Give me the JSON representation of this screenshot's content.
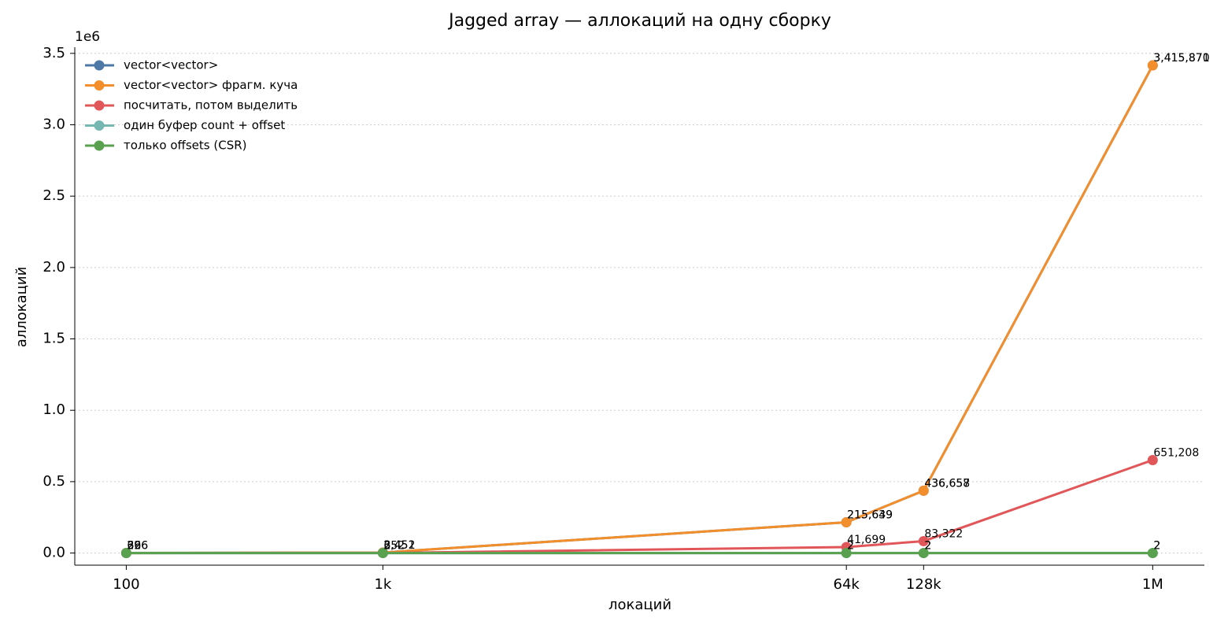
{
  "chart_data": {
    "type": "line",
    "title": "Jagged array — аллокаций на одну сборку",
    "x_label": "локаций",
    "y_label": "аллокаций",
    "y_offset_text": "1e6",
    "x": [
      100,
      1000,
      64000,
      128000,
      1000000
    ],
    "x_log": true,
    "xlim": [
      63,
      1590000
    ],
    "xticks": [
      100,
      {
        "value": 1000,
        "label": "1k"
      },
      {
        "value": 64000,
        "label": "64k"
      },
      {
        "value": 128000,
        "label": "128k"
      },
      {
        "value": 1000000,
        "label": "1M"
      }
    ],
    "ylim": [
      -85000,
      3543000
    ],
    "yticks": [
      {
        "value": 0,
        "label": "0.0"
      },
      {
        "value": 500000,
        "label": "0.5"
      },
      {
        "value": 1000000,
        "label": "1.0"
      },
      {
        "value": 1500000,
        "label": "1.5"
      },
      {
        "value": 2000000,
        "label": "2.0"
      },
      {
        "value": 2500000,
        "label": "2.5"
      },
      {
        "value": 3000000,
        "label": "3.0"
      },
      {
        "value": 3500000,
        "label": "3.5"
      }
    ],
    "grid": true,
    "legend": "upper left",
    "series": [
      {
        "name": "vector<vector>",
        "color": "#4e79a7",
        "values": [
          326,
          3451,
          215639,
          436657,
          3415870
        ],
        "value_labels": [
          "326",
          "3,451",
          "215,639",
          "436,657",
          "3,415,870"
        ]
      },
      {
        "name": "vector<vector> фрагм. куча",
        "color": "#f28e2b",
        "values": [
          396,
          3452,
          215649,
          436658,
          3415871
        ],
        "value_labels": [
          "396",
          "3,452",
          "215,649",
          "436,658",
          "3,415,871"
        ]
      },
      {
        "name": "посчитать, потом выделить",
        "color": "#e15759",
        "values": [
          66,
          652,
          41699,
          83322,
          651208
        ],
        "value_labels": [
          "66",
          "652",
          "41,699",
          "83,322",
          "651,208"
        ]
      },
      {
        "name": "один буфер count + offset",
        "color": "#76b7b2",
        "values": [
          2,
          2,
          2,
          2,
          2
        ],
        "value_labels": [
          "2",
          "2",
          "2",
          "2",
          "2"
        ]
      },
      {
        "name": "только offsets (CSR)",
        "color": "#59a14f",
        "values": [
          2,
          2,
          2,
          2,
          2
        ],
        "value_labels": [
          "2",
          "2",
          "2",
          "2",
          "2"
        ]
      }
    ]
  }
}
